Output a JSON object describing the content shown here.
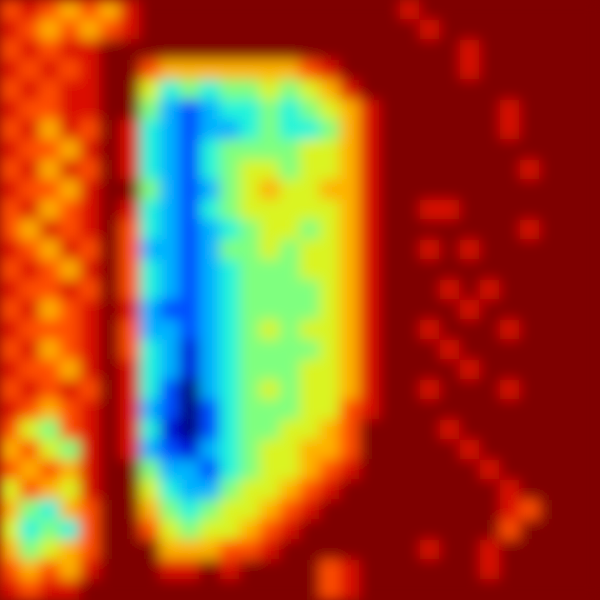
{
  "chart_data": {
    "type": "heatmap",
    "tick_labels": false,
    "zlim": [
      0,
      10
    ],
    "cells": [
      [
        8,
        9,
        8,
        7,
        8,
        7,
        9,
        10,
        10,
        10,
        10,
        10,
        10,
        10,
        10,
        10,
        10,
        10,
        10,
        10,
        9,
        10,
        10,
        10,
        10,
        10,
        10,
        10,
        10,
        10
      ],
      [
        9,
        8,
        7,
        8,
        7,
        8,
        9,
        10,
        10,
        10,
        10,
        10,
        10,
        10,
        10,
        10,
        10,
        10,
        10,
        10,
        10,
        9,
        10,
        10,
        10,
        10,
        10,
        10,
        10,
        10
      ],
      [
        8,
        9,
        8,
        9,
        9,
        10,
        10,
        10,
        10,
        10,
        10,
        10,
        10,
        10,
        10,
        10,
        10,
        10,
        10,
        10,
        10,
        10,
        10,
        9,
        10,
        10,
        10,
        10,
        10,
        10
      ],
      [
        9,
        8,
        9,
        8,
        9,
        10,
        10,
        8,
        7,
        7,
        7,
        7,
        7,
        7,
        7,
        8,
        9,
        10,
        10,
        10,
        10,
        10,
        10,
        9,
        10,
        10,
        10,
        10,
        10,
        10
      ],
      [
        8,
        9,
        8,
        9,
        9,
        10,
        10,
        6,
        4,
        5,
        4,
        5,
        5,
        6,
        5,
        6,
        7,
        9,
        10,
        10,
        10,
        10,
        10,
        10,
        10,
        10,
        10,
        10,
        10,
        10
      ],
      [
        9,
        8,
        8,
        9,
        9,
        10,
        10,
        5,
        3,
        2,
        3,
        4,
        4,
        5,
        4,
        5,
        6,
        7,
        9,
        10,
        10,
        10,
        10,
        10,
        10,
        9,
        10,
        10,
        10,
        10
      ],
      [
        8,
        9,
        7,
        9,
        8,
        10,
        9,
        4,
        3,
        2,
        3,
        3,
        4,
        5,
        4,
        4,
        5,
        7,
        9,
        10,
        10,
        10,
        10,
        10,
        10,
        9,
        10,
        10,
        10,
        10
      ],
      [
        9,
        8,
        8,
        7,
        9,
        10,
        9,
        4,
        3,
        2,
        4,
        5,
        5,
        5,
        5,
        6,
        6,
        7,
        9,
        10,
        10,
        10,
        10,
        10,
        10,
        10,
        10,
        10,
        10,
        10
      ],
      [
        8,
        9,
        7,
        9,
        8,
        10,
        9,
        4,
        3,
        2,
        4,
        5,
        6,
        6,
        5,
        6,
        6,
        7,
        9,
        10,
        10,
        10,
        10,
        10,
        10,
        10,
        9,
        10,
        10,
        10
      ],
      [
        9,
        8,
        8,
        7,
        9,
        10,
        10,
        5,
        3,
        2,
        3,
        5,
        6,
        7,
        6,
        6,
        7,
        7,
        9,
        10,
        10,
        10,
        10,
        10,
        10,
        10,
        10,
        10,
        10,
        10
      ],
      [
        8,
        9,
        7,
        8,
        9,
        10,
        9,
        4,
        3,
        2,
        4,
        5,
        6,
        6,
        6,
        6,
        6,
        7,
        9,
        10,
        10,
        9,
        9,
        10,
        10,
        10,
        10,
        10,
        10,
        10
      ],
      [
        8,
        7,
        9,
        8,
        9,
        10,
        8,
        4,
        3,
        2,
        3,
        4,
        5,
        6,
        6,
        5,
        6,
        7,
        9,
        10,
        10,
        10,
        10,
        10,
        10,
        10,
        9,
        10,
        10,
        10
      ],
      [
        9,
        8,
        7,
        9,
        8,
        10,
        8,
        3,
        3,
        2,
        3,
        5,
        5,
        6,
        5,
        6,
        6,
        7,
        9,
        10,
        10,
        9,
        10,
        9,
        10,
        10,
        10,
        10,
        10,
        10
      ],
      [
        8,
        9,
        8,
        7,
        9,
        10,
        8,
        4,
        3,
        2,
        3,
        4,
        5,
        5,
        5,
        6,
        6,
        7,
        9,
        10,
        10,
        10,
        10,
        10,
        10,
        10,
        10,
        10,
        10,
        10
      ],
      [
        9,
        8,
        8,
        9,
        8,
        10,
        8,
        4,
        3,
        2,
        3,
        4,
        5,
        5,
        5,
        5,
        6,
        7,
        9,
        10,
        10,
        10,
        9,
        10,
        9,
        10,
        10,
        10,
        10,
        10
      ],
      [
        8,
        9,
        7,
        8,
        9,
        10,
        9,
        3,
        2,
        2,
        3,
        4,
        5,
        5,
        5,
        5,
        6,
        7,
        9,
        10,
        10,
        10,
        10,
        9,
        10,
        10,
        10,
        10,
        10,
        10
      ],
      [
        9,
        8,
        8,
        8,
        9,
        10,
        8,
        3,
        3,
        2,
        3,
        4,
        5,
        6,
        5,
        6,
        6,
        7,
        9,
        10,
        10,
        9,
        10,
        10,
        10,
        9,
        10,
        10,
        10,
        10
      ],
      [
        8,
        9,
        7,
        8,
        9,
        10,
        8,
        4,
        3,
        1,
        3,
        4,
        5,
        5,
        5,
        5,
        6,
        7,
        9,
        10,
        10,
        10,
        9,
        10,
        10,
        10,
        10,
        10,
        10,
        10
      ],
      [
        9,
        8,
        8,
        7,
        9,
        10,
        9,
        4,
        3,
        1,
        3,
        4,
        5,
        5,
        5,
        6,
        6,
        7,
        9,
        10,
        10,
        10,
        10,
        9,
        10,
        10,
        10,
        10,
        10,
        10
      ],
      [
        8,
        9,
        8,
        9,
        8,
        10,
        9,
        4,
        2,
        0,
        3,
        4,
        5,
        6,
        5,
        6,
        6,
        7,
        9,
        10,
        10,
        9,
        10,
        10,
        10,
        9,
        10,
        10,
        10,
        10
      ],
      [
        9,
        8,
        7,
        8,
        9,
        10,
        9,
        3,
        2,
        0,
        2,
        4,
        5,
        5,
        5,
        6,
        6,
        8,
        9,
        10,
        10,
        10,
        10,
        10,
        10,
        10,
        10,
        10,
        10,
        10
      ],
      [
        8,
        6,
        5,
        8,
        9,
        10,
        9,
        4,
        1,
        0,
        2,
        4,
        5,
        5,
        6,
        6,
        7,
        8,
        10,
        10,
        10,
        10,
        9,
        10,
        10,
        10,
        10,
        10,
        10,
        10
      ],
      [
        7,
        8,
        6,
        5,
        9,
        10,
        9,
        3,
        2,
        1,
        3,
        4,
        5,
        6,
        6,
        7,
        7,
        8,
        10,
        10,
        10,
        10,
        10,
        9,
        10,
        10,
        10,
        10,
        10,
        10
      ],
      [
        8,
        7,
        8,
        7,
        9,
        10,
        10,
        5,
        3,
        3,
        2,
        4,
        5,
        6,
        6,
        7,
        8,
        9,
        10,
        10,
        10,
        10,
        10,
        10,
        9,
        10,
        10,
        10,
        10,
        10
      ],
      [
        6,
        8,
        7,
        6,
        9,
        10,
        10,
        6,
        4,
        3,
        3,
        5,
        6,
        6,
        7,
        8,
        9,
        10,
        10,
        10,
        10,
        10,
        10,
        10,
        10,
        9,
        10,
        10,
        10,
        10
      ],
      [
        7,
        5,
        4,
        7,
        8,
        10,
        10,
        7,
        5,
        4,
        5,
        6,
        6,
        7,
        8,
        9,
        10,
        10,
        10,
        10,
        10,
        10,
        10,
        10,
        10,
        9,
        8,
        10,
        10,
        10
      ],
      [
        6,
        4,
        5,
        4,
        8,
        10,
        10,
        8,
        6,
        5,
        6,
        6,
        7,
        8,
        9,
        10,
        10,
        10,
        10,
        10,
        10,
        10,
        10,
        10,
        10,
        8,
        10,
        10,
        10,
        10
      ],
      [
        7,
        5,
        6,
        7,
        8,
        10,
        10,
        10,
        7,
        7,
        7,
        8,
        8,
        9,
        10,
        10,
        10,
        10,
        10,
        10,
        10,
        9,
        10,
        10,
        9,
        10,
        10,
        10,
        10,
        10
      ],
      [
        8,
        7,
        8,
        7,
        9,
        10,
        10,
        10,
        9,
        9,
        10,
        9,
        10,
        10,
        10,
        10,
        8,
        9,
        10,
        10,
        10,
        10,
        10,
        10,
        9,
        10,
        10,
        10,
        10,
        10
      ],
      [
        9,
        8,
        9,
        9,
        10,
        10,
        10,
        10,
        10,
        10,
        10,
        10,
        10,
        10,
        10,
        10,
        8,
        9,
        10,
        10,
        10,
        10,
        10,
        10,
        10,
        10,
        10,
        10,
        10,
        10
      ]
    ]
  }
}
